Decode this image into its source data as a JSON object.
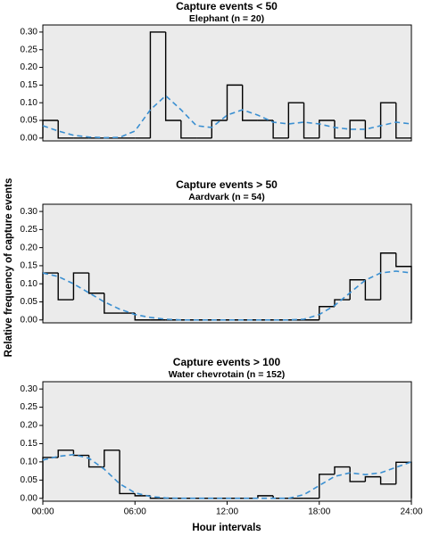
{
  "figure": {
    "ylabel": "Relative frequency of capture events",
    "xlabel": "Hour intervals"
  },
  "chart_data": [
    {
      "type": "histogram",
      "title": "Capture events < 50",
      "subtitle": "Elephant (n = 20)",
      "bins": [
        0,
        1,
        2,
        3,
        4,
        5,
        6,
        7,
        8,
        9,
        10,
        11,
        12,
        13,
        14,
        15,
        16,
        17,
        18,
        19,
        20,
        21,
        22,
        23,
        24
      ],
      "values": [
        0.05,
        0,
        0,
        0,
        0,
        0,
        0,
        0.3,
        0.05,
        0,
        0,
        0.05,
        0.15,
        0.05,
        0.05,
        0,
        0.1,
        0,
        0.05,
        0,
        0.05,
        0,
        0.1,
        0
      ],
      "color": "#000000",
      "density": {
        "color": "#3a8fd1",
        "x": [
          0,
          1,
          2,
          3,
          4,
          5,
          6,
          7,
          8,
          9,
          10,
          11,
          12,
          13,
          14,
          15,
          16,
          17,
          18,
          19,
          20,
          21,
          22,
          23,
          24
        ],
        "values": [
          0.035,
          0.02,
          0.008,
          0.003,
          0.001,
          0.002,
          0.02,
          0.08,
          0.12,
          0.08,
          0.035,
          0.03,
          0.065,
          0.08,
          0.065,
          0.045,
          0.04,
          0.045,
          0.04,
          0.03,
          0.025,
          0.025,
          0.035,
          0.045,
          0.04
        ]
      },
      "xlim": [
        0,
        24
      ],
      "ylim": [
        -0.008,
        0.32
      ],
      "yticks": [
        {
          "value": 0,
          "label": "0.00"
        },
        {
          "value": 0.05,
          "label": "0.05"
        },
        {
          "value": 0.1,
          "label": "0.10"
        },
        {
          "value": 0.15,
          "label": "0.15"
        },
        {
          "value": 0.2,
          "label": "0.20"
        },
        {
          "value": 0.25,
          "label": "0.25"
        },
        {
          "value": 0.3,
          "label": "0.30"
        }
      ]
    },
    {
      "type": "histogram",
      "title": "Capture events > 50",
      "subtitle": "Aardvark (n = 54)",
      "bins": [
        0,
        1,
        2,
        3,
        4,
        5,
        6,
        7,
        8,
        9,
        10,
        11,
        12,
        13,
        14,
        15,
        16,
        17,
        18,
        19,
        20,
        21,
        22,
        23,
        24
      ],
      "values": [
        0.13,
        0.056,
        0.13,
        0.074,
        0.019,
        0.019,
        0,
        0,
        0,
        0,
        0,
        0,
        0,
        0,
        0,
        0,
        0,
        0,
        0.037,
        0.056,
        0.111,
        0.056,
        0.185,
        0.148
      ],
      "color": "#000000",
      "density": {
        "color": "#3a8fd1",
        "x": [
          0,
          1,
          2,
          3,
          4,
          5,
          6,
          7,
          8,
          9,
          10,
          11,
          12,
          13,
          14,
          15,
          16,
          17,
          18,
          19,
          20,
          21,
          22,
          23,
          24
        ],
        "values": [
          0.13,
          0.12,
          0.1,
          0.075,
          0.05,
          0.03,
          0.015,
          0.007,
          0.002,
          0,
          0,
          0,
          0,
          0,
          0,
          0,
          0,
          0.002,
          0.015,
          0.04,
          0.075,
          0.11,
          0.13,
          0.135,
          0.13
        ]
      },
      "xlim": [
        0,
        24
      ],
      "ylim": [
        -0.008,
        0.32
      ],
      "yticks": [
        {
          "value": 0,
          "label": "0.00"
        },
        {
          "value": 0.05,
          "label": "0.05"
        },
        {
          "value": 0.1,
          "label": "0.10"
        },
        {
          "value": 0.15,
          "label": "0.15"
        },
        {
          "value": 0.2,
          "label": "0.20"
        },
        {
          "value": 0.25,
          "label": "0.25"
        },
        {
          "value": 0.3,
          "label": "0.30"
        }
      ]
    },
    {
      "type": "histogram",
      "title": "Capture events > 100",
      "subtitle": "Water chevrotain (n = 152)",
      "bins": [
        0,
        1,
        2,
        3,
        4,
        5,
        6,
        7,
        8,
        9,
        10,
        11,
        12,
        13,
        14,
        15,
        16,
        17,
        18,
        19,
        20,
        21,
        22,
        23,
        24
      ],
      "values": [
        0.112,
        0.132,
        0.118,
        0.086,
        0.132,
        0.013,
        0.007,
        0,
        0,
        0,
        0,
        0,
        0,
        0,
        0.007,
        0,
        0,
        0,
        0.066,
        0.086,
        0.046,
        0.059,
        0.039,
        0.099
      ],
      "color": "#000000",
      "density": {
        "color": "#3a8fd1",
        "x": [
          0,
          1,
          2,
          3,
          4,
          5,
          6,
          7,
          8,
          9,
          10,
          11,
          12,
          13,
          14,
          15,
          16,
          17,
          18,
          19,
          20,
          21,
          22,
          23,
          24
        ],
        "values": [
          0.105,
          0.115,
          0.12,
          0.11,
          0.08,
          0.04,
          0.015,
          0.005,
          0.001,
          0,
          0,
          0,
          0,
          0,
          0,
          0,
          0,
          0.01,
          0.035,
          0.06,
          0.07,
          0.065,
          0.07,
          0.085,
          0.1
        ]
      },
      "xlim": [
        0,
        24
      ],
      "ylim": [
        -0.008,
        0.32
      ],
      "xticks": [
        {
          "value": 0,
          "label": "00:00"
        },
        {
          "value": 6,
          "label": "06:00"
        },
        {
          "value": 12,
          "label": "12:00"
        },
        {
          "value": 18,
          "label": "18:00"
        },
        {
          "value": 24,
          "label": "24:00"
        }
      ],
      "yticks": [
        {
          "value": 0,
          "label": "0.00"
        },
        {
          "value": 0.05,
          "label": "0.05"
        },
        {
          "value": 0.1,
          "label": "0.10"
        },
        {
          "value": 0.15,
          "label": "0.15"
        },
        {
          "value": 0.2,
          "label": "0.20"
        },
        {
          "value": 0.25,
          "label": "0.25"
        },
        {
          "value": 0.3,
          "label": "0.30"
        }
      ]
    }
  ]
}
